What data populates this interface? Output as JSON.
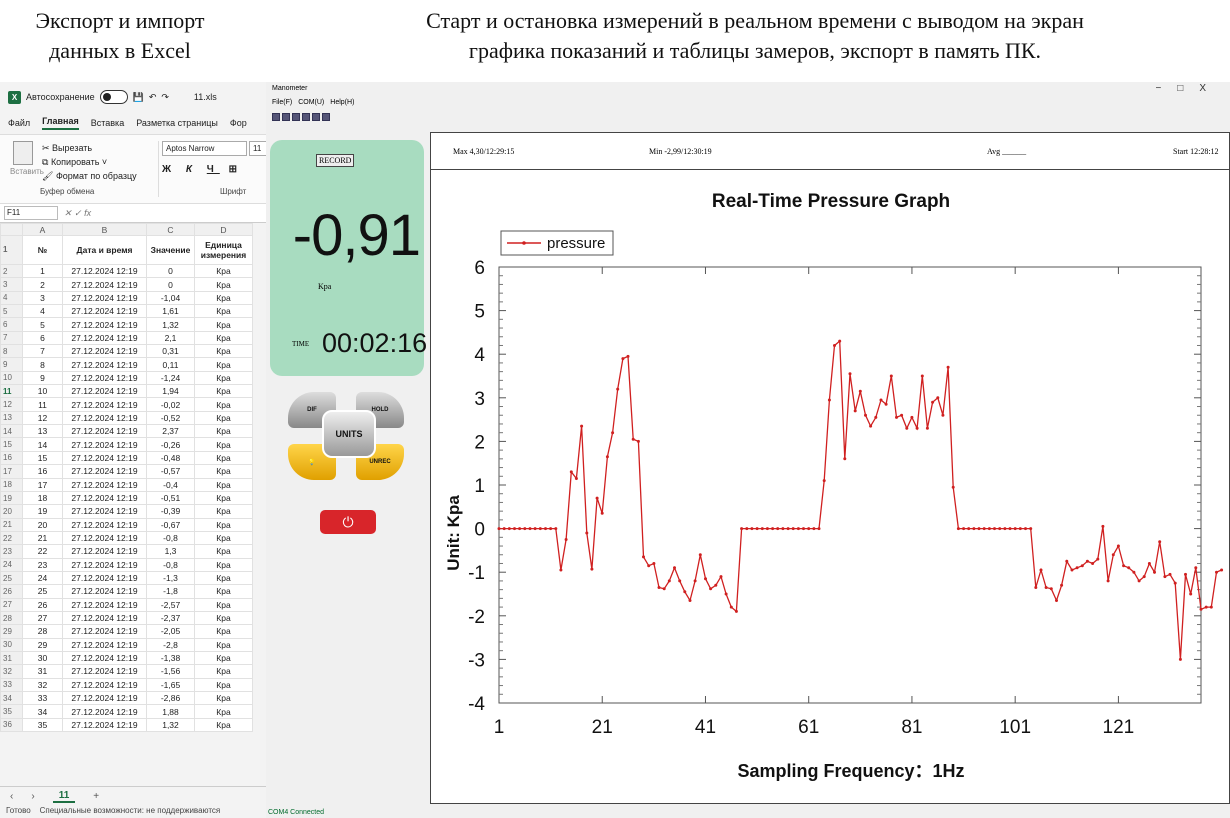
{
  "captions": {
    "left": [
      "Экспорт и импорт",
      "данных в Excel"
    ],
    "right": [
      "Старт и остановка измерений в реальном времени с выводом на экран",
      "графика показаний и таблицы замеров, экспорт в память ПК."
    ]
  },
  "excel": {
    "autosave_label": "Автосохранение",
    "filename": "11.xls",
    "tabs": [
      "Файл",
      "Главная",
      "Вставка",
      "Разметка страницы",
      "Фор"
    ],
    "ribbon": {
      "paste": "Вставить",
      "cut": "Вырезать",
      "copy": "Копировать",
      "format_painter": "Формат по образцу",
      "group_clipboard": "Буфер обмена",
      "font_name": "Aptos Narrow",
      "font_size": "11",
      "group_font": "Шрифт"
    },
    "name_box": "F11",
    "columns": [
      "A",
      "B",
      "C",
      "D"
    ],
    "headers": [
      "№",
      "Дата и время",
      "Значение",
      "Единица измерения"
    ],
    "date": "27.12.2024 12:19",
    "unit": "Кра",
    "values": [
      "0",
      "0",
      "-1,04",
      "1,61",
      "1,32",
      "2,1",
      "0,31",
      "0,11",
      "-1,24",
      "1,94",
      "-0,02",
      "-0,52",
      "2,37",
      "-0,26",
      "-0,48",
      "-0,57",
      "-0,4",
      "-0,51",
      "-0,39",
      "-0,67",
      "-0,8",
      "1,3",
      "-0,8",
      "-1,3",
      "-1,8",
      "-2,57",
      "-2,37",
      "-2,05",
      "-2,8",
      "-1,38",
      "-1,56",
      "-1,65",
      "-2,86",
      "1,88",
      "1,32"
    ],
    "sheet_tab": "11",
    "status": "Готово",
    "accessibility": "Специальные возможности: не поддерживаются"
  },
  "manometer": {
    "title": "Manometer",
    "menu": [
      "File(F)",
      "COM(U)",
      "Help(H)"
    ],
    "record": "RECORD",
    "reading": "-0,91",
    "unit": "Kpa",
    "time_label": "TIME",
    "time": "00:02:16",
    "buttons": {
      "dif": "DIF",
      "hold": "HOLD",
      "units": "UNITS",
      "unrec": "UNREC"
    },
    "status": "COM4 Connected",
    "stats": {
      "max": "Max 4,30/12:29:15",
      "min": "Min -2,99/12:30:19",
      "avg": "Avg ______",
      "start": "Start 12:28:12"
    }
  },
  "chart_data": {
    "type": "line",
    "title": "Real-Time Pressure Graph",
    "xlabel": "Sampling Frequency：1Hz",
    "ylabel": "Unit: Kpa",
    "xlim": [
      1,
      137
    ],
    "ylim": [
      -4,
      6
    ],
    "xticks": [
      1,
      21,
      41,
      61,
      81,
      101,
      121
    ],
    "yticks": [
      6,
      5,
      4,
      3,
      2,
      1,
      0,
      -1,
      -2,
      -3,
      -4
    ],
    "legend": "top-left",
    "color": "#d02020",
    "series": [
      {
        "name": "pressure",
        "values": [
          0,
          0,
          0,
          0,
          0,
          0,
          0,
          0,
          0,
          0,
          0,
          0,
          -0.95,
          -0.25,
          1.3,
          1.15,
          2.35,
          -0.1,
          -0.93,
          0.7,
          0.35,
          1.65,
          2.2,
          3.2,
          3.9,
          3.95,
          2.05,
          2.0,
          -0.65,
          -0.85,
          -0.8,
          -1.35,
          -1.38,
          -1.2,
          -0.9,
          -1.2,
          -1.45,
          -1.65,
          -1.2,
          -0.6,
          -1.15,
          -1.38,
          -1.3,
          -1.1,
          -1.5,
          -1.8,
          -1.9,
          0,
          0,
          0,
          0,
          0,
          0,
          0,
          0,
          0,
          0,
          0,
          0,
          0,
          0,
          0,
          0,
          1.1,
          2.95,
          4.2,
          4.3,
          1.6,
          3.55,
          2.7,
          3.15,
          2.6,
          2.35,
          2.55,
          2.95,
          2.85,
          3.5,
          2.55,
          2.6,
          2.3,
          2.55,
          2.3,
          3.5,
          2.3,
          2.9,
          3.0,
          2.6,
          3.7,
          0.95,
          0,
          0,
          0,
          0,
          0,
          0,
          0,
          0,
          0,
          0,
          0,
          0,
          0,
          0,
          0,
          -1.35,
          -0.95,
          -1.35,
          -1.38,
          -1.65,
          -1.3,
          -0.75,
          -0.95,
          -0.9,
          -0.85,
          -0.75,
          -0.8,
          -0.7,
          0.05,
          -1.2,
          -0.6,
          -0.4,
          -0.85,
          -0.9,
          -1.0,
          -1.2,
          -1.1,
          -0.8,
          -1.0,
          -0.3,
          -1.1,
          -1.05,
          -1.25,
          -3.0,
          -1.05,
          -1.5,
          -0.9,
          -1.85,
          -1.8,
          -1.8,
          -1.0,
          -0.95
        ]
      }
    ]
  }
}
